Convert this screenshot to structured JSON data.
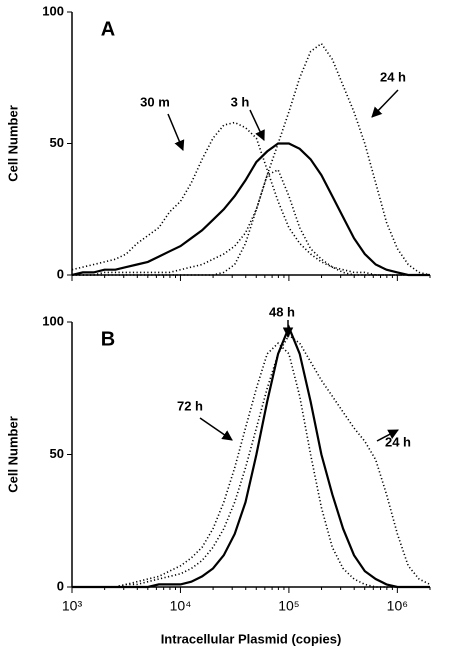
{
  "chart_data": [
    {
      "type": "line",
      "panel": "A",
      "ylabel": "Cell Number",
      "x": [
        1000,
        1259,
        1585,
        1995,
        2512,
        3162,
        3981,
        5012,
        6310,
        7943,
        10000,
        12589,
        15849,
        19953,
        25119,
        31623,
        39811,
        50119,
        63096,
        79433,
        100000,
        125893,
        158489,
        199526,
        251189,
        316228,
        398107,
        501187,
        630957,
        794328,
        1000000,
        1258925,
        1584893,
        1995262
      ],
      "xlim": [
        1000,
        2000000
      ],
      "log_x": true,
      "xticks": [
        1000,
        10000,
        100000,
        1000000
      ],
      "ylim": [
        0,
        100
      ],
      "yticks": [
        0,
        50,
        100
      ],
      "series": [
        {
          "name": "30 m",
          "color": "#000000",
          "dash": "dotted",
          "values": [
            2,
            3,
            4,
            5,
            6,
            8,
            12,
            15,
            18,
            24,
            28,
            35,
            44,
            52,
            57,
            58,
            56,
            52,
            40,
            28,
            18,
            12,
            8,
            5,
            3,
            2,
            1,
            1,
            0,
            0,
            0,
            0,
            0,
            0
          ]
        },
        {
          "name": "3 h",
          "color": "#000000",
          "dash": "solid",
          "values": [
            0,
            1,
            1,
            2,
            2,
            3,
            4,
            5,
            7,
            9,
            11,
            14,
            17,
            21,
            25,
            30,
            36,
            43,
            47,
            50,
            50,
            48,
            44,
            38,
            30,
            22,
            14,
            8,
            4,
            2,
            1,
            0,
            0,
            0
          ]
        },
        {
          "color": "#000000",
          "dash": "dotted",
          "values": [
            0,
            0,
            0,
            0,
            0,
            0,
            0,
            0,
            0,
            0,
            0,
            0,
            0,
            0,
            1,
            4,
            12,
            25,
            38,
            40,
            30,
            18,
            10,
            6,
            3,
            1,
            0,
            0,
            0,
            0,
            0,
            0,
            0,
            0
          ]
        },
        {
          "name": "24 h",
          "color": "#000000",
          "dash": "dotted",
          "values": [
            0,
            0,
            0,
            1,
            1,
            1,
            1,
            1,
            1,
            1,
            2,
            3,
            4,
            6,
            8,
            11,
            16,
            25,
            38,
            50,
            62,
            75,
            85,
            88,
            82,
            72,
            62,
            50,
            35,
            20,
            10,
            4,
            1,
            0
          ]
        }
      ]
    },
    {
      "type": "line",
      "panel": "B",
      "ylabel": "Cell Number",
      "xlabel": "Intracellular Plasmid (copies)",
      "x": [
        1000,
        1259,
        1585,
        1995,
        2512,
        3162,
        3981,
        5012,
        6310,
        7943,
        10000,
        12589,
        15849,
        19953,
        25119,
        31623,
        39811,
        50119,
        63096,
        79433,
        100000,
        125893,
        158489,
        199526,
        251189,
        316228,
        398107,
        501187,
        630957,
        794328,
        1000000,
        1258925,
        1584893,
        1995262
      ],
      "xlim": [
        1000,
        2000000
      ],
      "log_x": true,
      "xticks": [
        {
          "value": 1000,
          "label": "10³"
        },
        {
          "value": 10000,
          "label": "10⁴"
        },
        {
          "value": 100000,
          "label": "10⁵"
        },
        {
          "value": 1000000,
          "label": "10⁶"
        }
      ],
      "ylim": [
        0,
        100
      ],
      "yticks": [
        0,
        50,
        100
      ],
      "series": [
        {
          "name": "72 h",
          "color": "#000000",
          "dash": "dotted",
          "values": [
            0,
            0,
            0,
            0,
            0,
            1,
            2,
            3,
            4,
            6,
            8,
            11,
            15,
            22,
            32,
            45,
            60,
            75,
            88,
            92,
            88,
            72,
            50,
            30,
            15,
            7,
            3,
            1,
            0,
            0,
            0,
            0,
            0,
            0
          ]
        },
        {
          "name": "48 h",
          "color": "#000000",
          "dash": "solid",
          "values": [
            0,
            0,
            0,
            0,
            0,
            0,
            0,
            0,
            1,
            1,
            1,
            2,
            4,
            7,
            12,
            20,
            32,
            50,
            70,
            88,
            98,
            88,
            70,
            50,
            35,
            22,
            12,
            6,
            3,
            1,
            0,
            0,
            0,
            0
          ]
        },
        {
          "name": "24 h",
          "color": "#000000",
          "dash": "dotted",
          "values": [
            0,
            0,
            0,
            0,
            0,
            1,
            1,
            2,
            3,
            4,
            5,
            7,
            10,
            15,
            22,
            32,
            45,
            60,
            75,
            88,
            95,
            92,
            85,
            78,
            72,
            66,
            60,
            55,
            48,
            35,
            20,
            8,
            3,
            1
          ]
        }
      ]
    }
  ]
}
